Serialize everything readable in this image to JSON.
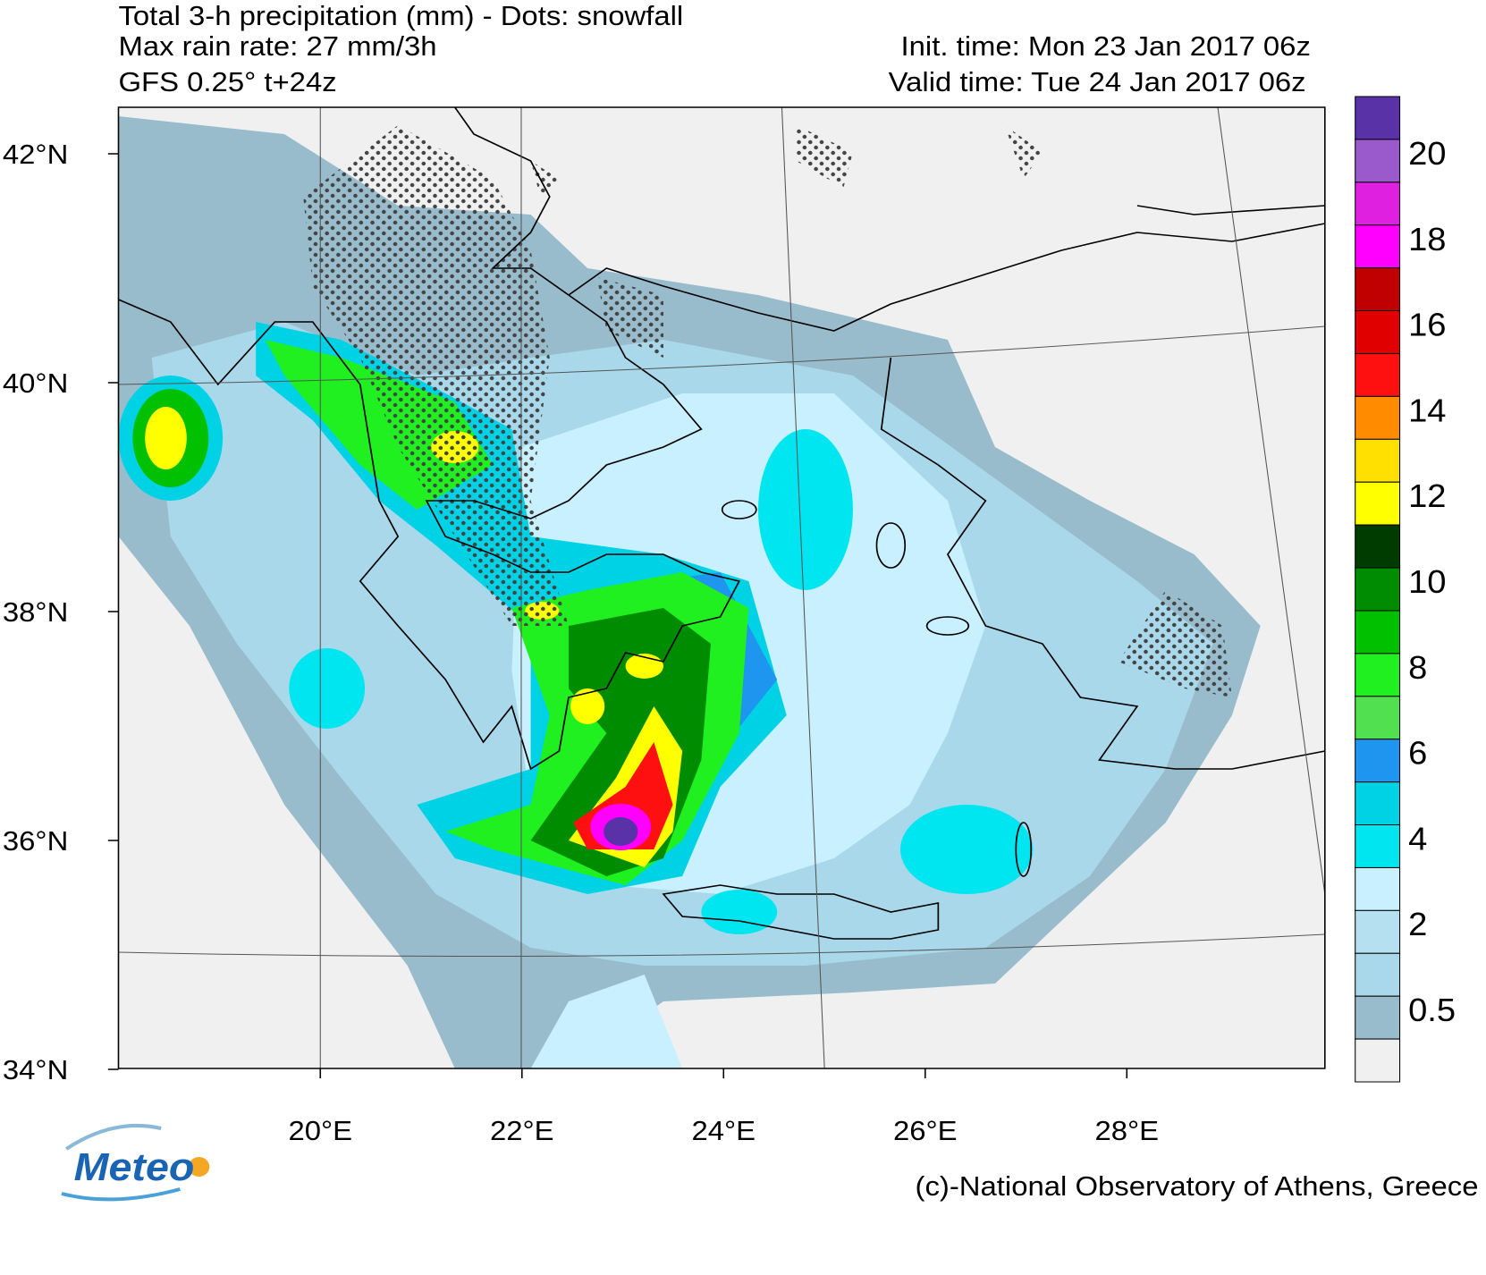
{
  "header": {
    "title": "Total 3-h precipitation (mm) - Dots: snowfall",
    "max_rate": "Max rain rate: 27 mm/3h",
    "model": "GFS 0.25° t+24z",
    "init_time": "Init. time: Mon 23 Jan 2017 06z",
    "valid_time": "Valid time: Tue 24 Jan 2017 06z"
  },
  "axes": {
    "lat_labels": [
      "42°N",
      "40°N",
      "38°N",
      "36°N",
      "34°N"
    ],
    "lon_labels": [
      "20°E",
      "22°E",
      "24°E",
      "26°E",
      "28°E"
    ]
  },
  "colorbar": {
    "labels": [
      "20",
      "18",
      "16",
      "14",
      "12",
      "10",
      "8",
      "6",
      "4",
      "2",
      "0.5"
    ],
    "colors": [
      "#5a32a8",
      "#9a5acc",
      "#e020e0",
      "#ff00ff",
      "#c00000",
      "#e00000",
      "#ff1010",
      "#ff8c00",
      "#ffe000",
      "#ffff00",
      "#003c00",
      "#008c00",
      "#00c000",
      "#20f020",
      "#50e050",
      "#1e96f0",
      "#00d2e6",
      "#00e6f0",
      "#c8f0ff",
      "#b4e0f0",
      "#a8d8ea",
      "#98bccc",
      "#f0f0f0"
    ]
  },
  "footer": {
    "copyright": "(c)-National Observatory of Athens, Greece",
    "logo": "Meteo"
  }
}
